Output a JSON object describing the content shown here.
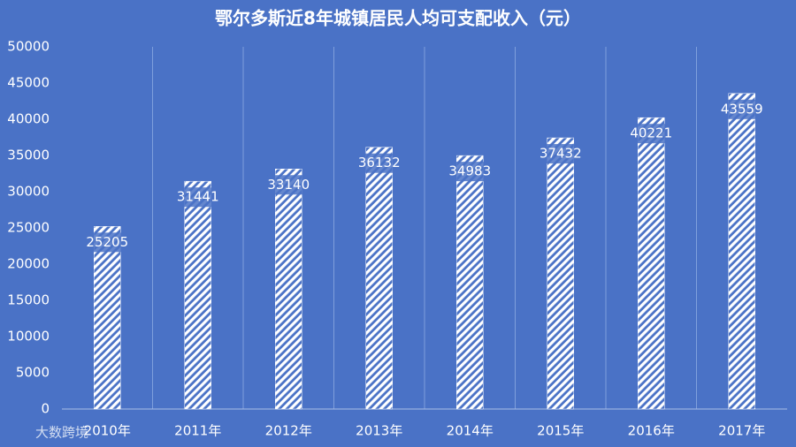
{
  "chart_data": {
    "type": "bar",
    "title": "鄂尔多斯近8年城镇居民人均可支配收入（元）",
    "categories": [
      "2010年",
      "2011年",
      "2012年",
      "2013年",
      "2014年",
      "2015年",
      "2016年",
      "2017年"
    ],
    "values": [
      25205,
      31441,
      33140,
      36132,
      34983,
      37432,
      40221,
      43559
    ],
    "color": "#ffffff",
    "ylim": [
      0,
      50000
    ],
    "yticks": [
      0,
      5000,
      10000,
      15000,
      20000,
      25000,
      30000,
      35000,
      40000,
      45000,
      50000
    ],
    "grid": false
  },
  "watermark": "大数跨境"
}
